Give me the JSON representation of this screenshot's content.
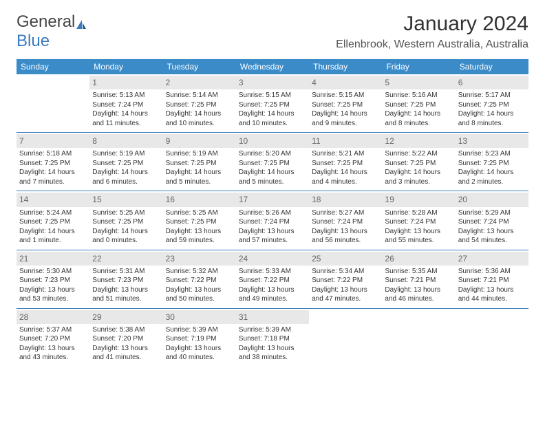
{
  "logo": {
    "word1": "General",
    "word2": "Blue"
  },
  "title": "January 2024",
  "location": "Ellenbrook, Western Australia, Australia",
  "colors": {
    "header_bg": "#3b8bc9",
    "header_text": "#ffffff",
    "daynum_bg": "#e8e8e8",
    "daynum_text": "#666666",
    "rule": "#3b7bbf",
    "body_text": "#333333",
    "logo_gray": "#555555",
    "logo_blue": "#3b7bbf"
  },
  "weekdays": [
    "Sunday",
    "Monday",
    "Tuesday",
    "Wednesday",
    "Thursday",
    "Friday",
    "Saturday"
  ],
  "weeks": [
    [
      null,
      {
        "n": "1",
        "sr": "Sunrise: 5:13 AM",
        "ss": "Sunset: 7:24 PM",
        "d1": "Daylight: 14 hours",
        "d2": "and 11 minutes."
      },
      {
        "n": "2",
        "sr": "Sunrise: 5:14 AM",
        "ss": "Sunset: 7:25 PM",
        "d1": "Daylight: 14 hours",
        "d2": "and 10 minutes."
      },
      {
        "n": "3",
        "sr": "Sunrise: 5:15 AM",
        "ss": "Sunset: 7:25 PM",
        "d1": "Daylight: 14 hours",
        "d2": "and 10 minutes."
      },
      {
        "n": "4",
        "sr": "Sunrise: 5:15 AM",
        "ss": "Sunset: 7:25 PM",
        "d1": "Daylight: 14 hours",
        "d2": "and 9 minutes."
      },
      {
        "n": "5",
        "sr": "Sunrise: 5:16 AM",
        "ss": "Sunset: 7:25 PM",
        "d1": "Daylight: 14 hours",
        "d2": "and 8 minutes."
      },
      {
        "n": "6",
        "sr": "Sunrise: 5:17 AM",
        "ss": "Sunset: 7:25 PM",
        "d1": "Daylight: 14 hours",
        "d2": "and 8 minutes."
      }
    ],
    [
      {
        "n": "7",
        "sr": "Sunrise: 5:18 AM",
        "ss": "Sunset: 7:25 PM",
        "d1": "Daylight: 14 hours",
        "d2": "and 7 minutes."
      },
      {
        "n": "8",
        "sr": "Sunrise: 5:19 AM",
        "ss": "Sunset: 7:25 PM",
        "d1": "Daylight: 14 hours",
        "d2": "and 6 minutes."
      },
      {
        "n": "9",
        "sr": "Sunrise: 5:19 AM",
        "ss": "Sunset: 7:25 PM",
        "d1": "Daylight: 14 hours",
        "d2": "and 5 minutes."
      },
      {
        "n": "10",
        "sr": "Sunrise: 5:20 AM",
        "ss": "Sunset: 7:25 PM",
        "d1": "Daylight: 14 hours",
        "d2": "and 5 minutes."
      },
      {
        "n": "11",
        "sr": "Sunrise: 5:21 AM",
        "ss": "Sunset: 7:25 PM",
        "d1": "Daylight: 14 hours",
        "d2": "and 4 minutes."
      },
      {
        "n": "12",
        "sr": "Sunrise: 5:22 AM",
        "ss": "Sunset: 7:25 PM",
        "d1": "Daylight: 14 hours",
        "d2": "and 3 minutes."
      },
      {
        "n": "13",
        "sr": "Sunrise: 5:23 AM",
        "ss": "Sunset: 7:25 PM",
        "d1": "Daylight: 14 hours",
        "d2": "and 2 minutes."
      }
    ],
    [
      {
        "n": "14",
        "sr": "Sunrise: 5:24 AM",
        "ss": "Sunset: 7:25 PM",
        "d1": "Daylight: 14 hours",
        "d2": "and 1 minute."
      },
      {
        "n": "15",
        "sr": "Sunrise: 5:25 AM",
        "ss": "Sunset: 7:25 PM",
        "d1": "Daylight: 14 hours",
        "d2": "and 0 minutes."
      },
      {
        "n": "16",
        "sr": "Sunrise: 5:25 AM",
        "ss": "Sunset: 7:25 PM",
        "d1": "Daylight: 13 hours",
        "d2": "and 59 minutes."
      },
      {
        "n": "17",
        "sr": "Sunrise: 5:26 AM",
        "ss": "Sunset: 7:24 PM",
        "d1": "Daylight: 13 hours",
        "d2": "and 57 minutes."
      },
      {
        "n": "18",
        "sr": "Sunrise: 5:27 AM",
        "ss": "Sunset: 7:24 PM",
        "d1": "Daylight: 13 hours",
        "d2": "and 56 minutes."
      },
      {
        "n": "19",
        "sr": "Sunrise: 5:28 AM",
        "ss": "Sunset: 7:24 PM",
        "d1": "Daylight: 13 hours",
        "d2": "and 55 minutes."
      },
      {
        "n": "20",
        "sr": "Sunrise: 5:29 AM",
        "ss": "Sunset: 7:24 PM",
        "d1": "Daylight: 13 hours",
        "d2": "and 54 minutes."
      }
    ],
    [
      {
        "n": "21",
        "sr": "Sunrise: 5:30 AM",
        "ss": "Sunset: 7:23 PM",
        "d1": "Daylight: 13 hours",
        "d2": "and 53 minutes."
      },
      {
        "n": "22",
        "sr": "Sunrise: 5:31 AM",
        "ss": "Sunset: 7:23 PM",
        "d1": "Daylight: 13 hours",
        "d2": "and 51 minutes."
      },
      {
        "n": "23",
        "sr": "Sunrise: 5:32 AM",
        "ss": "Sunset: 7:22 PM",
        "d1": "Daylight: 13 hours",
        "d2": "and 50 minutes."
      },
      {
        "n": "24",
        "sr": "Sunrise: 5:33 AM",
        "ss": "Sunset: 7:22 PM",
        "d1": "Daylight: 13 hours",
        "d2": "and 49 minutes."
      },
      {
        "n": "25",
        "sr": "Sunrise: 5:34 AM",
        "ss": "Sunset: 7:22 PM",
        "d1": "Daylight: 13 hours",
        "d2": "and 47 minutes."
      },
      {
        "n": "26",
        "sr": "Sunrise: 5:35 AM",
        "ss": "Sunset: 7:21 PM",
        "d1": "Daylight: 13 hours",
        "d2": "and 46 minutes."
      },
      {
        "n": "27",
        "sr": "Sunrise: 5:36 AM",
        "ss": "Sunset: 7:21 PM",
        "d1": "Daylight: 13 hours",
        "d2": "and 44 minutes."
      }
    ],
    [
      {
        "n": "28",
        "sr": "Sunrise: 5:37 AM",
        "ss": "Sunset: 7:20 PM",
        "d1": "Daylight: 13 hours",
        "d2": "and 43 minutes."
      },
      {
        "n": "29",
        "sr": "Sunrise: 5:38 AM",
        "ss": "Sunset: 7:20 PM",
        "d1": "Daylight: 13 hours",
        "d2": "and 41 minutes."
      },
      {
        "n": "30",
        "sr": "Sunrise: 5:39 AM",
        "ss": "Sunset: 7:19 PM",
        "d1": "Daylight: 13 hours",
        "d2": "and 40 minutes."
      },
      {
        "n": "31",
        "sr": "Sunrise: 5:39 AM",
        "ss": "Sunset: 7:18 PM",
        "d1": "Daylight: 13 hours",
        "d2": "and 38 minutes."
      },
      null,
      null,
      null
    ]
  ]
}
